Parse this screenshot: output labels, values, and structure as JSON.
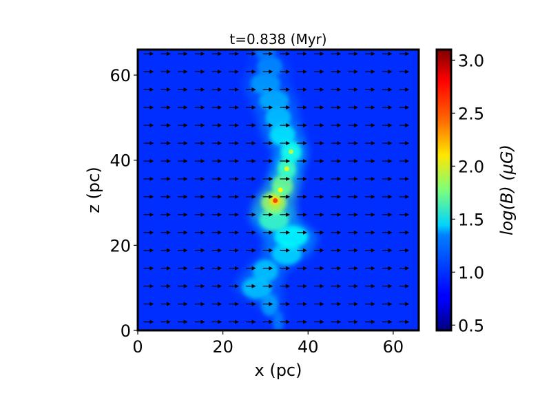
{
  "chart_data": {
    "type": "heatmap",
    "title": "t=0.838 (Myr)",
    "xlabel": "x (pc)",
    "ylabel": "z (pc)",
    "xlim": [
      0,
      66
    ],
    "ylim": [
      0,
      66
    ],
    "xticks": [
      0,
      20,
      40,
      60
    ],
    "yticks": [
      0,
      20,
      40,
      60
    ],
    "xtick_labels": [
      "0",
      "20",
      "40",
      "60"
    ],
    "ytick_labels": [
      "0",
      "20",
      "40",
      "60"
    ],
    "colorbar": {
      "label": "log(B) (μG)",
      "min": 0.45,
      "max": 3.1,
      "ticks": [
        0.5,
        1.0,
        1.5,
        2.0,
        2.5,
        3.0
      ],
      "tick_labels": [
        "0.5",
        "1.0",
        "1.5",
        "2.0",
        "2.5",
        "3.0"
      ],
      "colormap": "jet"
    },
    "background_value": 0.9,
    "filament": [
      {
        "z": 2,
        "x": 33,
        "width": 2.5,
        "value": 1.1
      },
      {
        "z": 6,
        "x": 31,
        "width": 4,
        "value": 1.2
      },
      {
        "z": 10,
        "x": 28,
        "width": 7,
        "value": 1.3
      },
      {
        "z": 14,
        "x": 30,
        "width": 6,
        "value": 1.3
      },
      {
        "z": 18,
        "x": 35,
        "width": 7,
        "value": 1.35
      },
      {
        "z": 22,
        "x": 36,
        "width": 8,
        "value": 1.45
      },
      {
        "z": 26,
        "x": 32,
        "width": 7,
        "value": 1.6
      },
      {
        "z": 30,
        "x": 32,
        "width": 6,
        "value": 1.85
      },
      {
        "z": 34,
        "x": 34,
        "width": 5,
        "value": 1.75
      },
      {
        "z": 38,
        "x": 35,
        "width": 4.5,
        "value": 1.6
      },
      {
        "z": 42,
        "x": 36,
        "width": 5,
        "value": 1.5
      },
      {
        "z": 46,
        "x": 34,
        "width": 6,
        "value": 1.4
      },
      {
        "z": 50,
        "x": 33,
        "width": 6,
        "value": 1.3
      },
      {
        "z": 54,
        "x": 32,
        "width": 7,
        "value": 1.25
      },
      {
        "z": 58,
        "x": 30,
        "width": 7,
        "value": 1.2
      },
      {
        "z": 62,
        "x": 31,
        "width": 6,
        "value": 1.15
      },
      {
        "z": 66,
        "x": 30,
        "width": 5,
        "value": 1.1
      }
    ],
    "hotspots": [
      {
        "x": 32.3,
        "z": 30.5,
        "value": 2.6
      },
      {
        "x": 33.5,
        "z": 33,
        "value": 2.1
      },
      {
        "x": 35,
        "z": 38,
        "value": 2.0
      },
      {
        "x": 36,
        "z": 42,
        "value": 1.9
      }
    ],
    "vector_field": {
      "x_positions": [
        2.5,
        6.5,
        10.5,
        14.5,
        18.5,
        22.5,
        26.5,
        30.5,
        34.5,
        38.5,
        42.5,
        46.5,
        50.5,
        54.5,
        58.5,
        62.5
      ],
      "z_positions": [
        2,
        6.2,
        10.4,
        14.6,
        18.8,
        23,
        27.2,
        31.4,
        35.6,
        39.8,
        44,
        48.2,
        52.4,
        56.6,
        60.8,
        65
      ],
      "direction": "+x",
      "length": 2.2
    }
  }
}
